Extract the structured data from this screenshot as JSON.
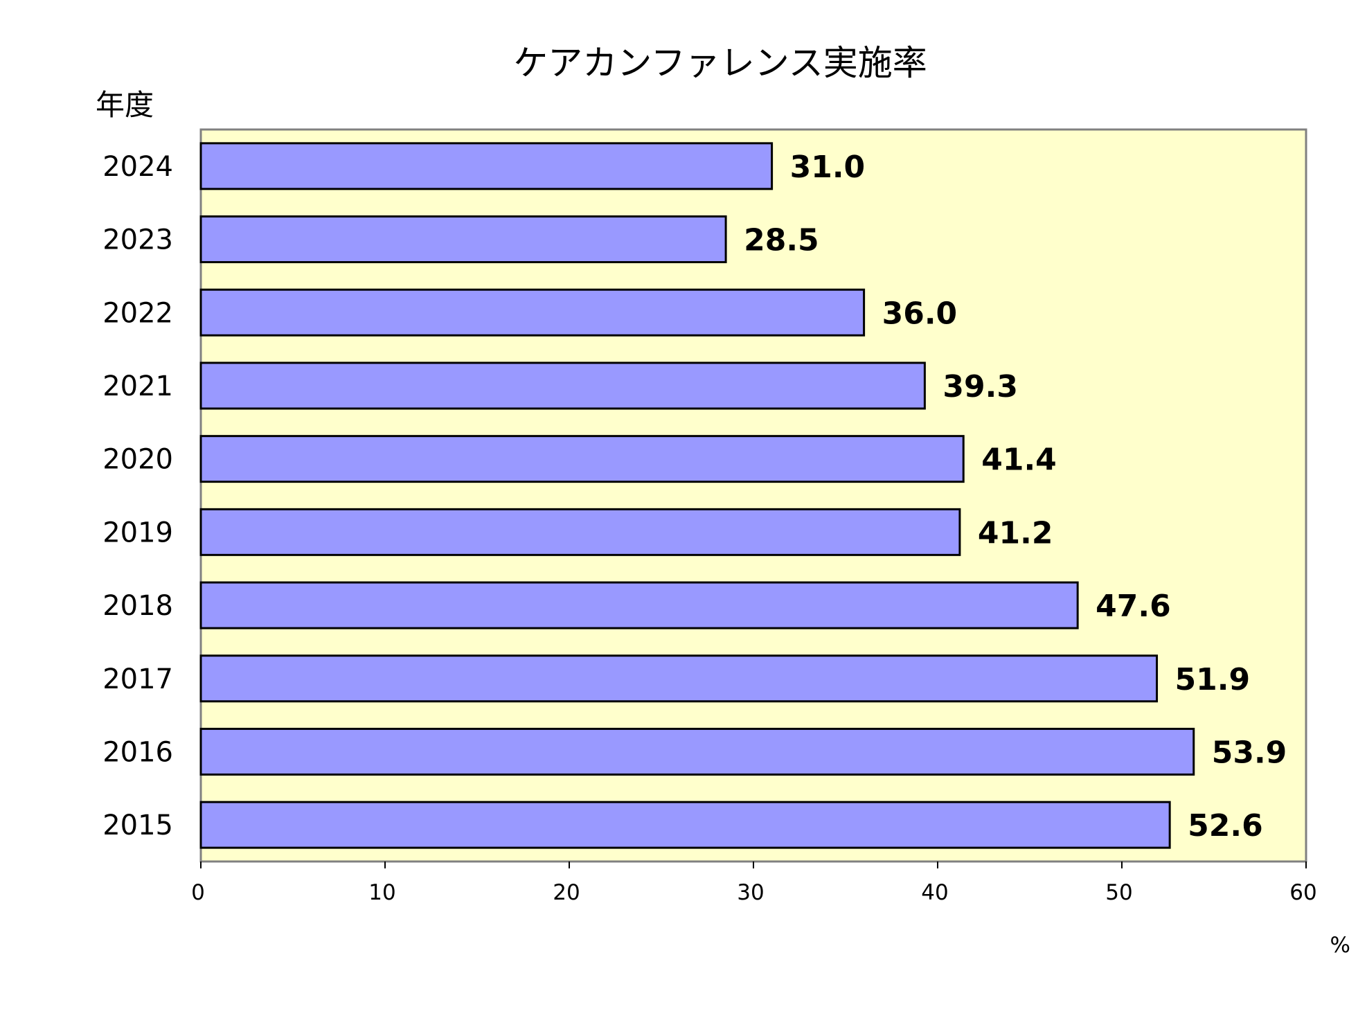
{
  "chart_data": {
    "type": "bar",
    "orientation": "horizontal",
    "title": "ケアカンファレンス実施率",
    "ylabel": "年度",
    "xlabel": "%",
    "categories": [
      "2024",
      "2023",
      "2022",
      "2021",
      "2020",
      "2019",
      "2018",
      "2017",
      "2016",
      "2015"
    ],
    "values": [
      31.0,
      28.5,
      36.0,
      39.3,
      41.4,
      41.2,
      47.6,
      51.9,
      53.9,
      52.6
    ],
    "value_labels": [
      "31.0",
      "28.5",
      "36.0",
      "39.3",
      "41.4",
      "41.2",
      "47.6",
      "51.9",
      "53.9",
      "52.6"
    ],
    "xlim": [
      0,
      60
    ],
    "xticks": [
      0,
      10,
      20,
      30,
      40,
      50,
      60
    ],
    "xtick_labels": [
      "0",
      "10",
      "20",
      "30",
      "40",
      "50",
      "60"
    ],
    "grid": false,
    "legend": "none",
    "colors": {
      "bar_fill": "#9999ff",
      "bar_stroke": "#000000",
      "plot_background": "#ffffcc",
      "plot_border": "#808080",
      "page_background": "#ffffff"
    }
  }
}
